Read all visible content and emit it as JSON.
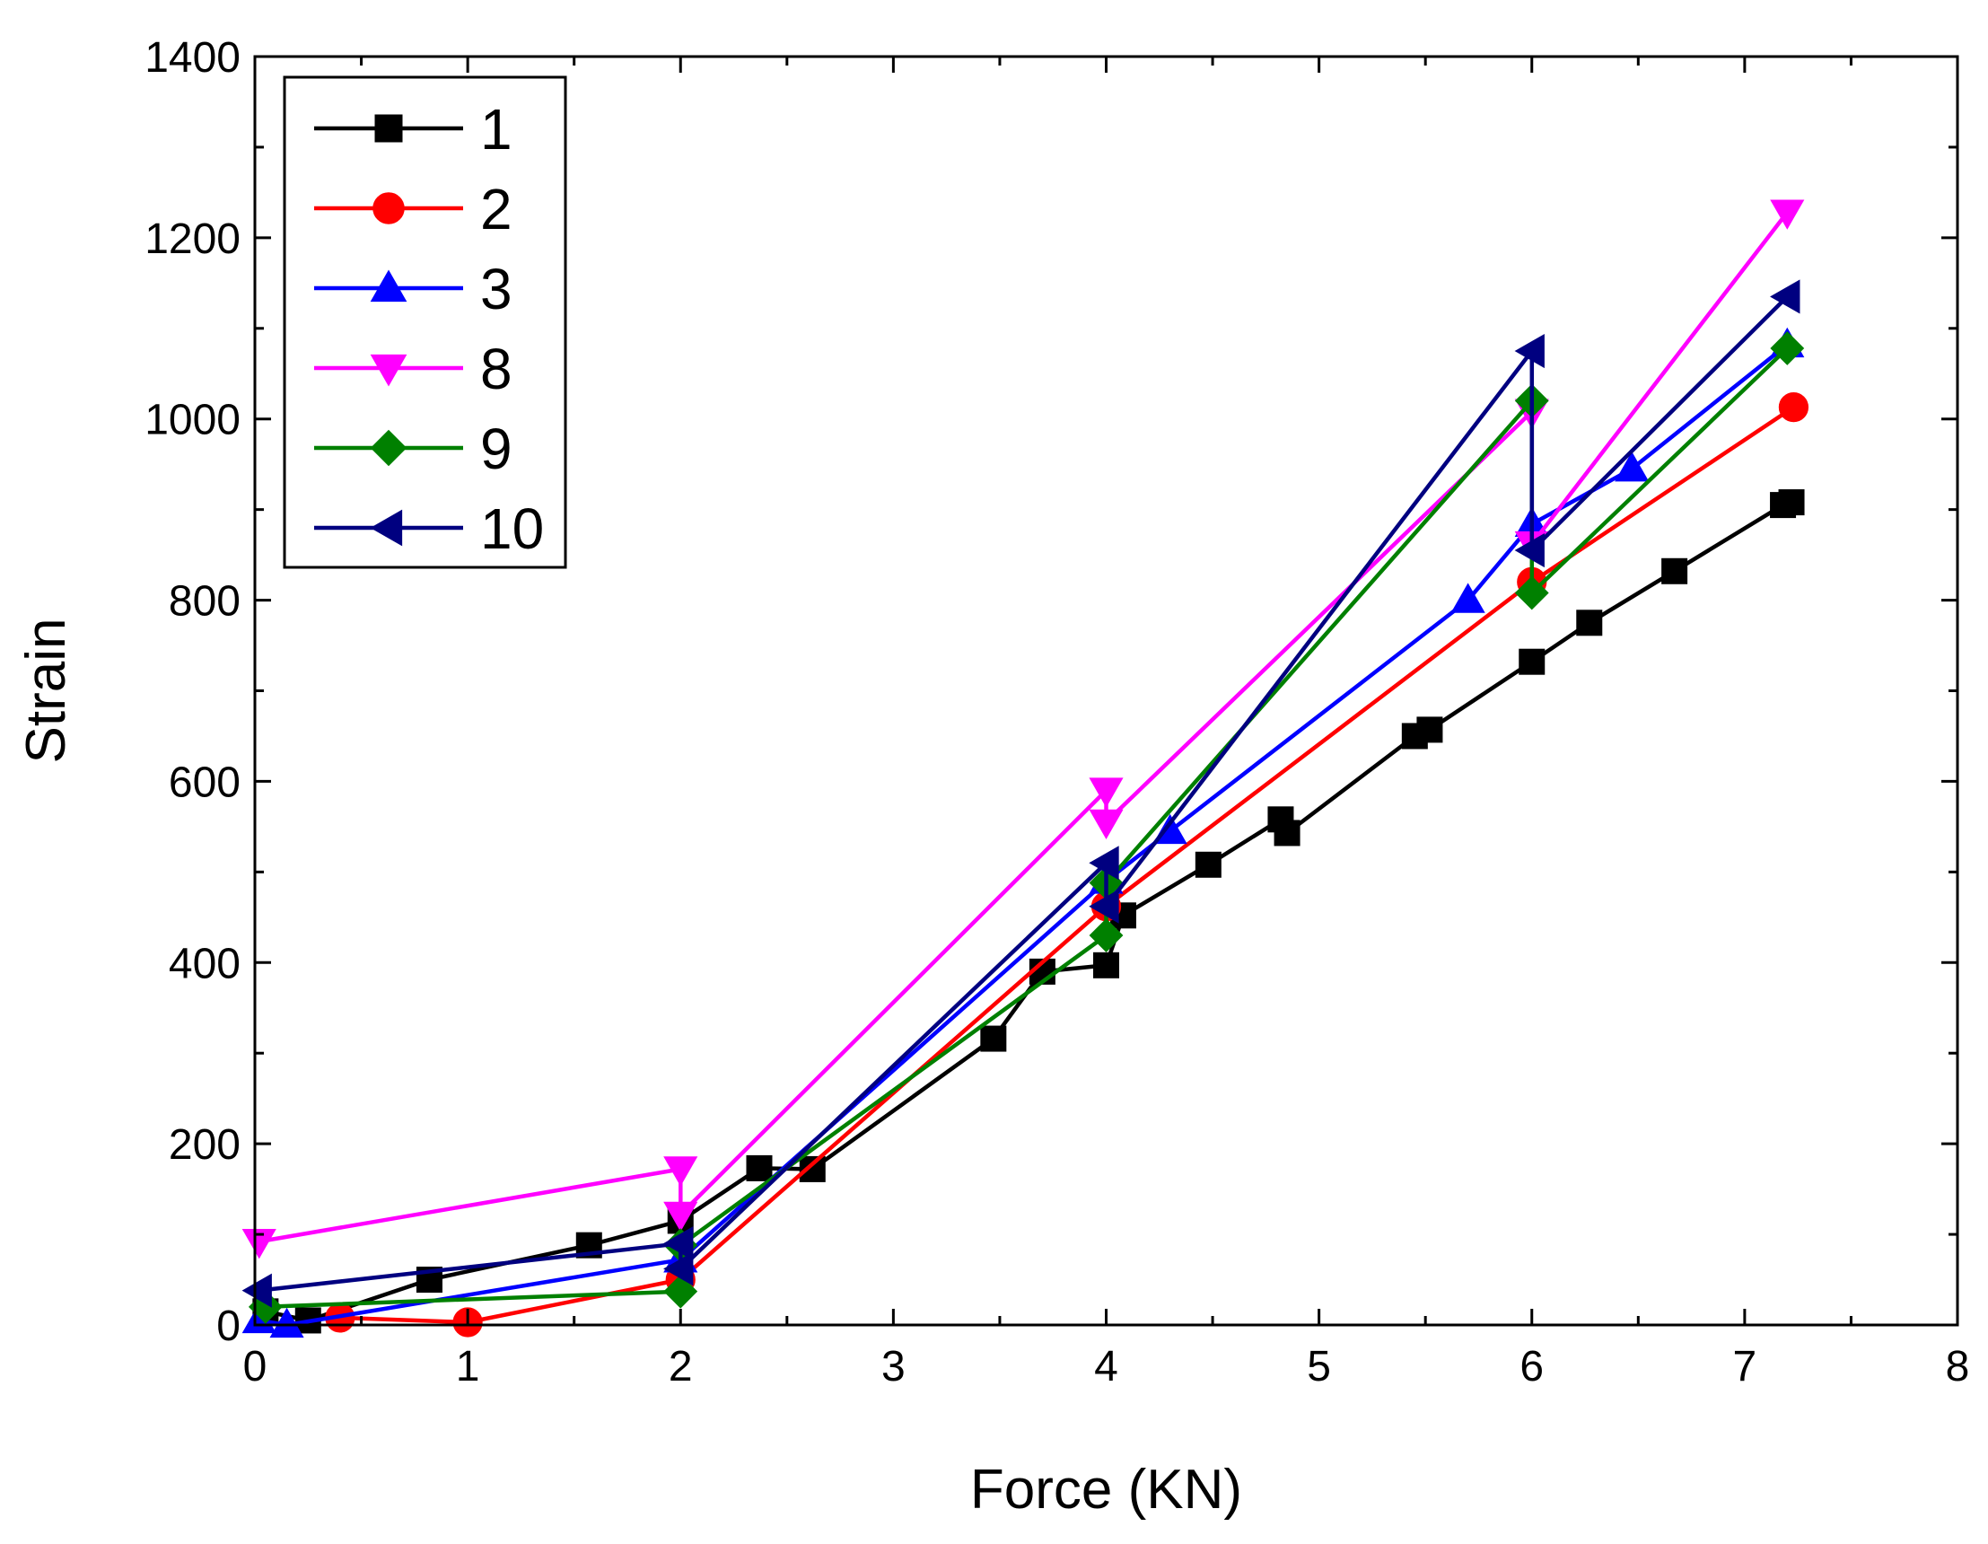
{
  "chart_data": {
    "type": "line",
    "title": "",
    "xlabel": "Force (KN)",
    "ylabel": "Strain",
    "xlim": [
      0,
      8
    ],
    "ylim": [
      0,
      1400
    ],
    "xticks": [
      "0",
      "1",
      "2",
      "3",
      "4",
      "5",
      "6",
      "7",
      "8"
    ],
    "yticks": [
      "0",
      "200",
      "400",
      "600",
      "800",
      "1000",
      "1200",
      "1400"
    ],
    "grid": false,
    "legend_position": "top-left",
    "series": [
      {
        "name": "1",
        "color": "#000000",
        "marker": "square",
        "points": [
          [
            0.05,
            15
          ],
          [
            0.25,
            5
          ],
          [
            0.82,
            50
          ],
          [
            1.57,
            88
          ],
          [
            2.0,
            115
          ],
          [
            2.37,
            173
          ],
          [
            2.62,
            172
          ],
          [
            3.47,
            316
          ],
          [
            3.7,
            390
          ],
          [
            4.0,
            397
          ],
          [
            4.08,
            452
          ],
          [
            4.48,
            508
          ],
          [
            4.82,
            558
          ],
          [
            4.85,
            543
          ],
          [
            5.45,
            650
          ],
          [
            5.52,
            657
          ],
          [
            6.0,
            732
          ],
          [
            6.27,
            775
          ],
          [
            6.67,
            832
          ],
          [
            7.18,
            905
          ],
          [
            7.22,
            908
          ]
        ]
      },
      {
        "name": "2",
        "color": "#ff0000",
        "marker": "circle",
        "points": [
          [
            0.4,
            8
          ],
          [
            1.0,
            3
          ],
          [
            2.0,
            50
          ],
          [
            4.0,
            462
          ],
          [
            6.0,
            820
          ],
          [
            7.23,
            1013
          ]
        ]
      },
      {
        "name": "3",
        "color": "#0000ff",
        "marker": "triangle-up",
        "points": [
          [
            0.02,
            5
          ],
          [
            0.15,
            0
          ],
          [
            2.0,
            72
          ],
          [
            4.0,
            490
          ],
          [
            4.3,
            545
          ],
          [
            5.7,
            800
          ],
          [
            6.0,
            884
          ],
          [
            6.47,
            945
          ],
          [
            7.2,
            1082
          ]
        ]
      },
      {
        "name": "8",
        "color": "#ff00ff",
        "marker": "triangle-down",
        "points": [
          [
            0.02,
            92
          ],
          [
            2.0,
            172
          ],
          [
            2.0,
            122
          ],
          [
            4.0,
            590
          ],
          [
            4.0,
            555
          ],
          [
            6.0,
            1008
          ],
          [
            6.0,
            862
          ],
          [
            7.2,
            1228
          ]
        ]
      },
      {
        "name": "9",
        "color": "#008000",
        "marker": "diamond",
        "points": [
          [
            0.05,
            20
          ],
          [
            2.0,
            37
          ],
          [
            2.0,
            88
          ],
          [
            4.0,
            430
          ],
          [
            4.0,
            488
          ],
          [
            6.0,
            1020
          ],
          [
            6.0,
            808
          ],
          [
            7.2,
            1078
          ]
        ]
      },
      {
        "name": "10",
        "color": "#000080",
        "marker": "triangle-left",
        "points": [
          [
            0.02,
            38
          ],
          [
            2.0,
            90
          ],
          [
            2.0,
            62
          ],
          [
            4.0,
            510
          ],
          [
            4.0,
            462
          ],
          [
            6.0,
            1075
          ],
          [
            6.0,
            855
          ],
          [
            7.2,
            1135
          ]
        ]
      }
    ]
  }
}
